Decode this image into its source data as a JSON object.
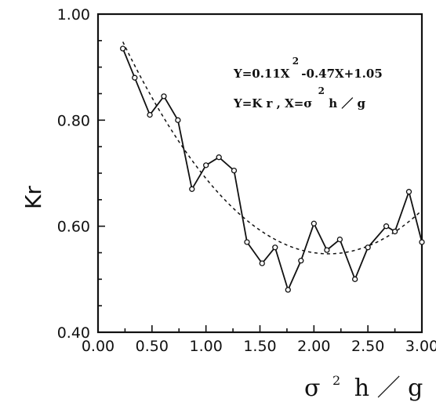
{
  "chart_data": {
    "type": "line",
    "title": "",
    "xlabel": {
      "base": "σ",
      "sup": "2",
      "rest": "h ／ g"
    },
    "ylabel": "Kr",
    "xlim": [
      0.0,
      3.0
    ],
    "ylim": [
      0.4,
      1.0
    ],
    "x_ticks": [
      "0.00",
      "0.50",
      "1.00",
      "1.50",
      "2.00",
      "2.50",
      "3.00"
    ],
    "y_ticks": [
      "0.40",
      "0.60",
      "0.80",
      "1.00"
    ],
    "series": [
      {
        "style": "solid-with-circle-markers",
        "x": [
          0.23,
          0.34,
          0.48,
          0.61,
          0.74,
          0.87,
          1.0,
          1.12,
          1.26,
          1.38,
          1.52,
          1.64,
          1.76,
          1.88,
          2.0,
          2.12,
          2.24,
          2.38,
          2.5,
          2.67,
          2.75,
          2.88,
          3.0
        ],
        "y": [
          0.935,
          0.88,
          0.81,
          0.845,
          0.8,
          0.67,
          0.715,
          0.73,
          0.705,
          0.57,
          0.53,
          0.56,
          0.48,
          0.535,
          0.605,
          0.555,
          0.575,
          0.5,
          0.56,
          0.6,
          0.59,
          0.665,
          0.57
        ]
      },
      {
        "style": "dashed-fit",
        "equation": "Y = 0.11X² − 0.47X + 1.05",
        "coefficients": {
          "a": 0.11,
          "b": -0.47,
          "c": 1.05
        },
        "x_range": [
          0.23,
          3.0
        ]
      }
    ],
    "annotations": {
      "eq1": {
        "a": "Y=0.11X",
        "sup": "2",
        "b": "-0.47X+1.05"
      },
      "eq2": {
        "a": "Y=K r   , X=σ",
        "sup": "2",
        "b": "h ／ g"
      }
    }
  }
}
